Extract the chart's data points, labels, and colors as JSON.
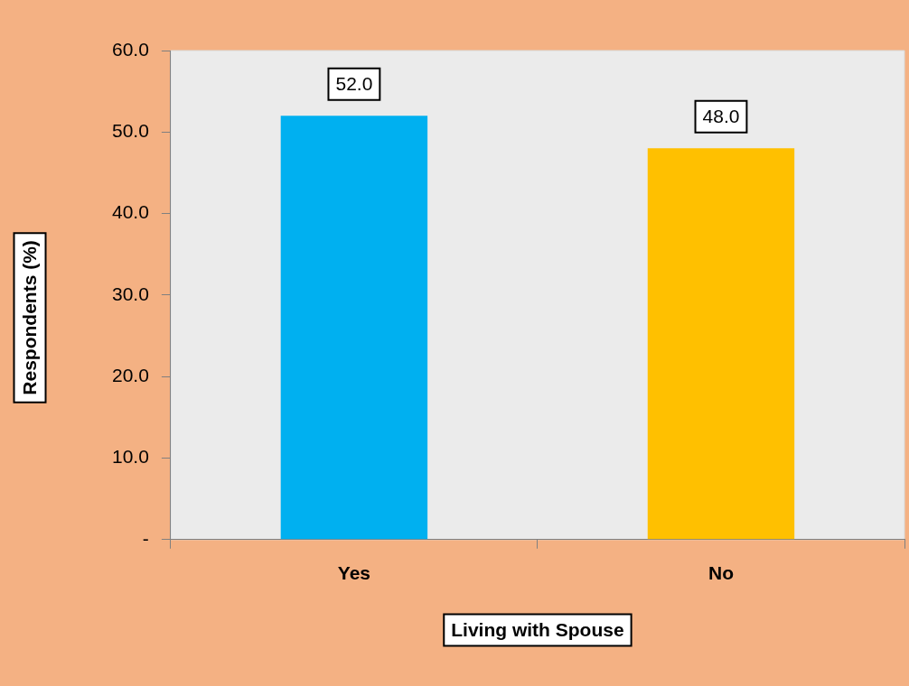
{
  "chart_data": {
    "type": "bar",
    "xlabel": "Living with Spouse",
    "ylabel": "Respondents (%)",
    "categories": [
      "Yes",
      "No"
    ],
    "values": [
      52.0,
      48.0
    ],
    "colors": [
      "#00b0f0",
      "#ffc000"
    ],
    "value_labels": [
      "52.0",
      "48.0"
    ],
    "ylim": [
      0,
      60
    ],
    "yticks": [
      {
        "value": 0,
        "label": "-"
      },
      {
        "value": 10,
        "label": "10.0"
      },
      {
        "value": 20,
        "label": "20.0"
      },
      {
        "value": 30,
        "label": "30.0"
      },
      {
        "value": 40,
        "label": "40.0"
      },
      {
        "value": 50,
        "label": "50.0"
      },
      {
        "value": 60,
        "label": "60.0"
      }
    ],
    "grid": false,
    "legend": false
  }
}
